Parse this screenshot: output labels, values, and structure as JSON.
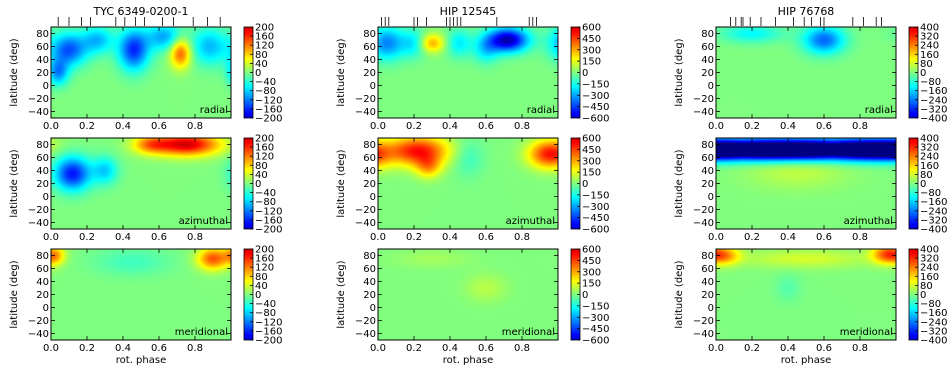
{
  "chart_data": {
    "type": "heatmap",
    "layout": "3 columns x 3 rows",
    "x_label": "rot. phase",
    "y_label": "latitude (deg)",
    "x_range": [
      0.0,
      1.0
    ],
    "x_ticks": [
      "0.0",
      "0.2",
      "0.4",
      "0.6",
      "0.8"
    ],
    "y_range": [
      -50,
      90
    ],
    "y_ticks": [
      "80",
      "60",
      "40",
      "20",
      "0",
      "−20",
      "−40"
    ],
    "colormap": "jet",
    "components": [
      "radial",
      "azimuthal",
      "meridional"
    ],
    "stars": [
      {
        "title": "TYC 6349-0200-1",
        "colorbar_ticks": [
          "200",
          "160",
          "120",
          "80",
          "40",
          "0",
          "−40",
          "−80",
          "−120",
          "−160",
          "−200"
        ],
        "vmin": -200,
        "vmax": 200,
        "observation_phases": [
          0.04,
          0.1,
          0.17,
          0.22,
          0.36,
          0.41,
          0.47,
          0.52,
          0.62,
          0.68,
          0.79,
          0.87,
          0.94
        ]
      },
      {
        "title": "HIP 12545",
        "colorbar_ticks": [
          "600",
          "450",
          "300",
          "150",
          "0",
          "−150",
          "−300",
          "−450",
          "−600"
        ],
        "vmin": -600,
        "vmax": 600,
        "observation_phases": [
          0.02,
          0.04,
          0.06,
          0.2,
          0.22,
          0.27,
          0.38,
          0.4,
          0.42,
          0.44,
          0.46,
          0.66,
          0.84,
          0.86,
          0.88
        ]
      },
      {
        "title": "HIP 76768",
        "colorbar_ticks": [
          "400",
          "320",
          "240",
          "160",
          "80",
          "0",
          "−80",
          "−160",
          "−240",
          "−320",
          "−400"
        ],
        "vmin": -400,
        "vmax": 400,
        "observation_phases": [
          0.08,
          0.11,
          0.14,
          0.15,
          0.19,
          0.25,
          0.33,
          0.43,
          0.49,
          0.53,
          0.58,
          0.6,
          0.76,
          0.82,
          0.89,
          0.92
        ]
      }
    ],
    "maps": {
      "TYC 6349-0200-1": {
        "radial": [
          {
            "x": 0.1,
            "y": 55,
            "amp": -140,
            "sx": 0.07,
            "sy": 18
          },
          {
            "x": 0.04,
            "y": 20,
            "amp": -110,
            "sx": 0.04,
            "sy": 14
          },
          {
            "x": 0.26,
            "y": 70,
            "amp": -90,
            "sx": 0.06,
            "sy": 15
          },
          {
            "x": 0.46,
            "y": 55,
            "amp": -160,
            "sx": 0.06,
            "sy": 22
          },
          {
            "x": 0.63,
            "y": 75,
            "amp": -100,
            "sx": 0.07,
            "sy": 15
          },
          {
            "x": 0.72,
            "y": 50,
            "amp": 140,
            "sx": 0.04,
            "sy": 16
          },
          {
            "x": 0.88,
            "y": 60,
            "amp": -90,
            "sx": 0.07,
            "sy": 20
          }
        ],
        "azimuthal": [
          {
            "x": 0.12,
            "y": 35,
            "amp": -170,
            "sx": 0.07,
            "sy": 18
          },
          {
            "x": 0.3,
            "y": 40,
            "amp": -80,
            "sx": 0.05,
            "sy": 15
          },
          {
            "x": 0.75,
            "y": 80,
            "amp": 200,
            "sx": 0.13,
            "sy": 12
          },
          {
            "x": 0.55,
            "y": 80,
            "amp": 90,
            "sx": 0.07,
            "sy": 10
          }
        ],
        "meridional": [
          {
            "x": 0.02,
            "y": 80,
            "amp": 110,
            "sx": 0.04,
            "sy": 10
          },
          {
            "x": 0.9,
            "y": 75,
            "amp": 140,
            "sx": 0.06,
            "sy": 12
          },
          {
            "x": 0.45,
            "y": 70,
            "amp": -30,
            "sx": 0.15,
            "sy": 15
          }
        ]
      },
      "HIP 12545": {
        "radial": [
          {
            "x": 0.05,
            "y": 65,
            "amp": -350,
            "sx": 0.07,
            "sy": 18
          },
          {
            "x": 0.3,
            "y": 65,
            "amp": 300,
            "sx": 0.05,
            "sy": 10
          },
          {
            "x": 0.2,
            "y": 65,
            "amp": -200,
            "sx": 0.05,
            "sy": 15
          },
          {
            "x": 0.45,
            "y": 65,
            "amp": -200,
            "sx": 0.05,
            "sy": 15
          },
          {
            "x": 0.72,
            "y": 70,
            "amp": -650,
            "sx": 0.08,
            "sy": 13
          },
          {
            "x": 0.6,
            "y": 55,
            "amp": -200,
            "sx": 0.05,
            "sy": 15
          }
        ],
        "azimuthal": [
          {
            "x": 0.22,
            "y": 70,
            "amp": 520,
            "sx": 0.12,
            "sy": 16
          },
          {
            "x": 0.28,
            "y": 45,
            "amp": 250,
            "sx": 0.05,
            "sy": 12
          },
          {
            "x": 0.95,
            "y": 65,
            "amp": 480,
            "sx": 0.08,
            "sy": 15
          },
          {
            "x": 0.5,
            "y": 60,
            "amp": -100,
            "sx": 0.06,
            "sy": 20
          }
        ],
        "meridional": [
          {
            "x": 0.6,
            "y": 30,
            "amp": 80,
            "sx": 0.08,
            "sy": 15
          },
          {
            "x": 0.3,
            "y": 75,
            "amp": 50,
            "sx": 0.15,
            "sy": 10
          }
        ]
      },
      "HIP 76768": {
        "radial": [
          {
            "x": 0.6,
            "y": 70,
            "amp": -260,
            "sx": 0.08,
            "sy": 15
          },
          {
            "x": 0.2,
            "y": 80,
            "amp": -120,
            "sx": 0.12,
            "sy": 10
          }
        ],
        "azimuthal": [
          {
            "x": 0.15,
            "y": 72,
            "amp": -550,
            "sx": 0.3,
            "sy": 11
          },
          {
            "x": 0.65,
            "y": 72,
            "amp": -500,
            "sx": 0.3,
            "sy": 11
          },
          {
            "x": 0.45,
            "y": 40,
            "amp": 60,
            "sx": 0.2,
            "sy": 20
          }
        ],
        "meridional": [
          {
            "x": 0.05,
            "y": 80,
            "amp": 200,
            "sx": 0.06,
            "sy": 10
          },
          {
            "x": 0.95,
            "y": 82,
            "amp": 260,
            "sx": 0.06,
            "sy": 10
          },
          {
            "x": 0.5,
            "y": 75,
            "amp": 80,
            "sx": 0.25,
            "sy": 10
          },
          {
            "x": 0.4,
            "y": 30,
            "amp": -40,
            "sx": 0.05,
            "sy": 15
          }
        ]
      }
    }
  }
}
